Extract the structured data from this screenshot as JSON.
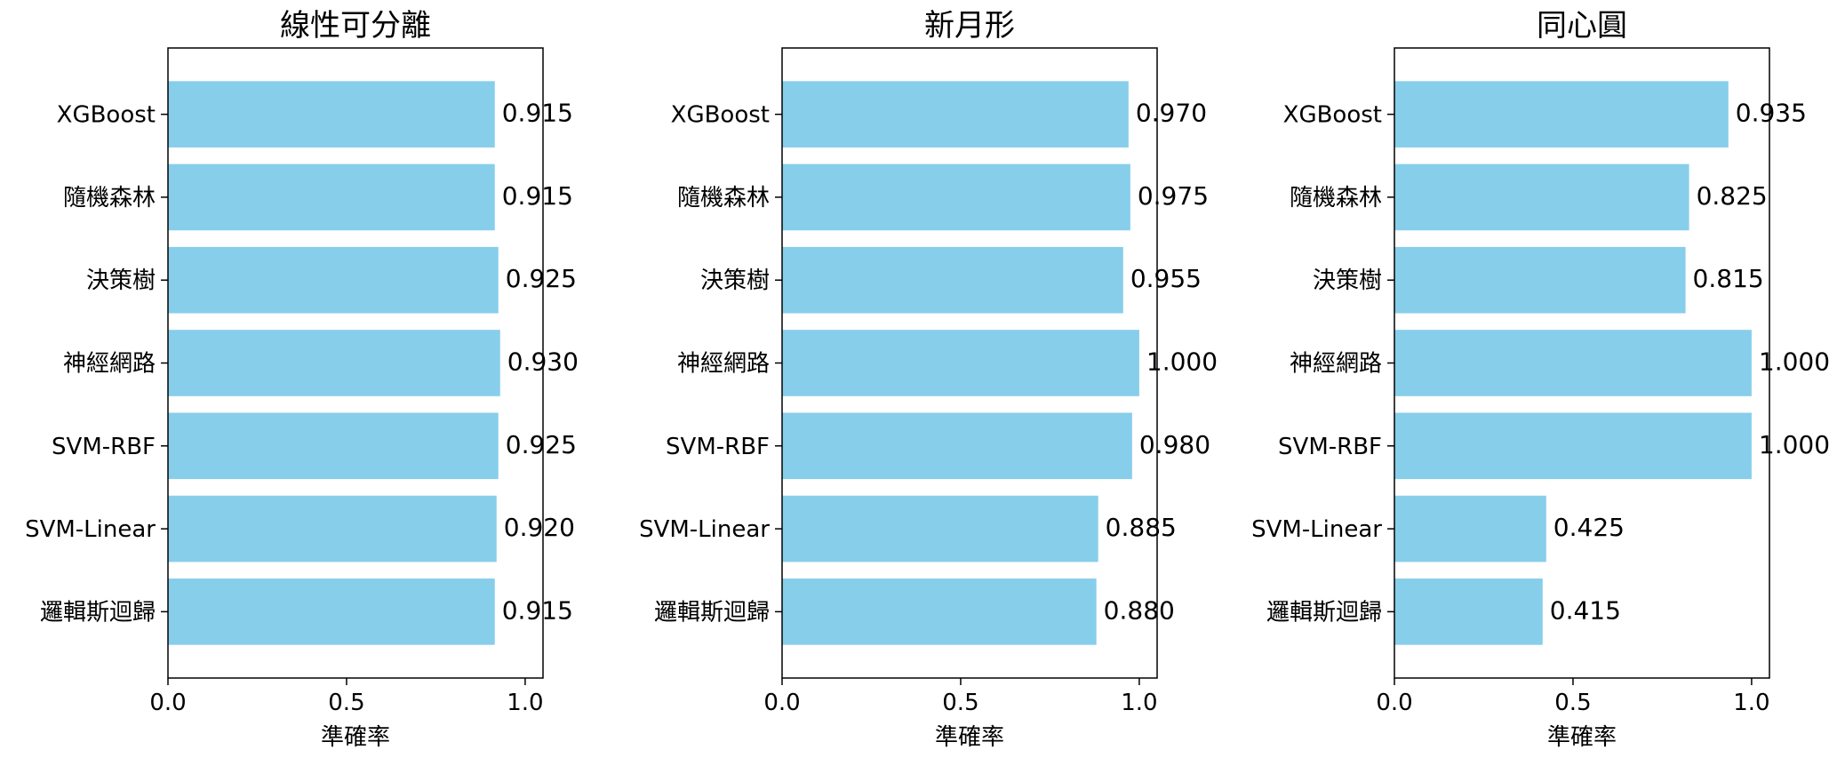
{
  "bar_color": "#87CEEB",
  "chart_data": [
    {
      "type": "bar",
      "orientation": "horizontal",
      "title": "線性可分離",
      "xlabel": "準確率",
      "xlim": [
        0,
        1.05
      ],
      "xticks": [
        "0.0",
        "0.5",
        "1.0"
      ],
      "categories": [
        "XGBoost",
        "隨機森林",
        "決策樹",
        "神經網路",
        "SVM-RBF",
        "SVM-Linear",
        "邏輯斯迴歸"
      ],
      "values": [
        0.915,
        0.915,
        0.925,
        0.93,
        0.925,
        0.92,
        0.915
      ],
      "value_labels": [
        "0.915",
        "0.915",
        "0.925",
        "0.930",
        "0.925",
        "0.920",
        "0.915"
      ]
    },
    {
      "type": "bar",
      "orientation": "horizontal",
      "title": "新月形",
      "xlabel": "準確率",
      "xlim": [
        0,
        1.05
      ],
      "xticks": [
        "0.0",
        "0.5",
        "1.0"
      ],
      "categories": [
        "XGBoost",
        "隨機森林",
        "決策樹",
        "神經網路",
        "SVM-RBF",
        "SVM-Linear",
        "邏輯斯迴歸"
      ],
      "values": [
        0.97,
        0.975,
        0.955,
        1.0,
        0.98,
        0.885,
        0.88
      ],
      "value_labels": [
        "0.970",
        "0.975",
        "0.955",
        "1.000",
        "0.980",
        "0.885",
        "0.880"
      ]
    },
    {
      "type": "bar",
      "orientation": "horizontal",
      "title": "同心圓",
      "xlabel": "準確率",
      "xlim": [
        0,
        1.05
      ],
      "xticks": [
        "0.0",
        "0.5",
        "1.0"
      ],
      "categories": [
        "XGBoost",
        "隨機森林",
        "決策樹",
        "神經網路",
        "SVM-RBF",
        "SVM-Linear",
        "邏輯斯迴歸"
      ],
      "values": [
        0.935,
        0.825,
        0.815,
        1.0,
        1.0,
        0.425,
        0.415
      ],
      "value_labels": [
        "0.935",
        "0.825",
        "0.815",
        "1.000",
        "1.000",
        "0.425",
        "0.415"
      ]
    }
  ]
}
